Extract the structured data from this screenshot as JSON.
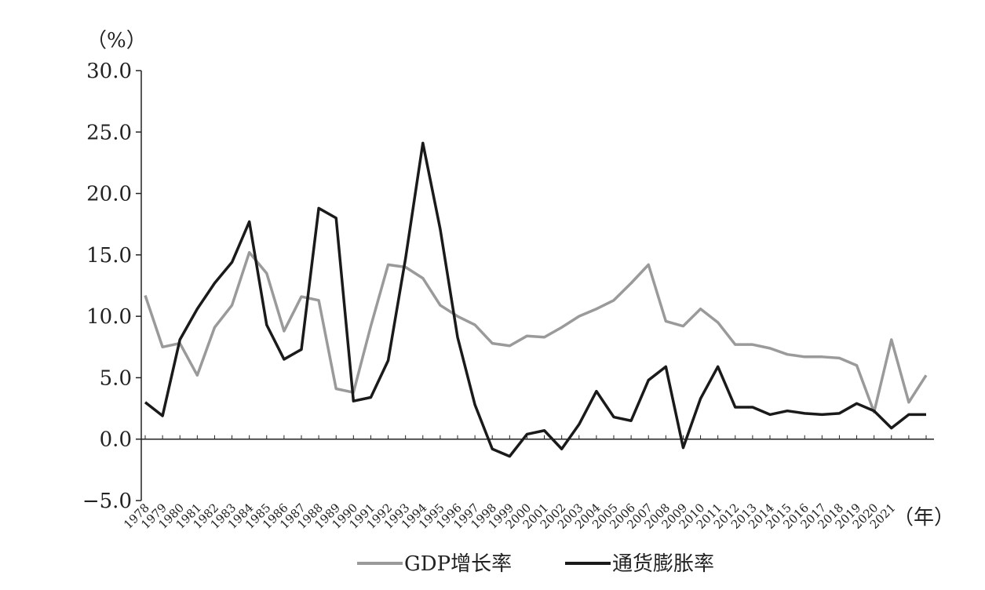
{
  "chart_data": {
    "type": "line",
    "y_axis_label": "（%）",
    "x_axis_label": "（年）",
    "categories": [
      "1978",
      "1979",
      "1980",
      "1981",
      "1982",
      "1983",
      "1984",
      "1985",
      "1986",
      "1987",
      "1988",
      "1989",
      "1990",
      "1991",
      "1992",
      "1993",
      "1994",
      "1995",
      "1996",
      "1997",
      "1998",
      "1999",
      "2000",
      "2001",
      "2002",
      "2003",
      "2004",
      "2005",
      "2006",
      "2007",
      "2008",
      "2009",
      "2010",
      "2011",
      "2012",
      "2013",
      "2014",
      "2015",
      "2016",
      "2017",
      "2018",
      "2019",
      "2020",
      "2021",
      null,
      null
    ],
    "series": [
      {
        "name": "GDP增长率",
        "color": "#9a9a9a",
        "values": [
          11.7,
          7.5,
          7.8,
          5.2,
          9.1,
          10.9,
          15.2,
          13.5,
          8.8,
          11.6,
          11.3,
          4.1,
          3.8,
          9.2,
          14.2,
          14.0,
          13.1,
          10.9,
          10.0,
          9.3,
          7.8,
          7.6,
          8.4,
          8.3,
          9.1,
          10.0,
          10.6,
          11.3,
          12.7,
          14.2,
          9.6,
          9.2,
          10.6,
          9.5,
          7.7,
          7.7,
          7.4,
          6.9,
          6.7,
          6.7,
          6.6,
          6.0,
          2.2,
          8.1,
          3.0,
          5.2
        ]
      },
      {
        "name": "通货膨胀率",
        "color": "#1a1a1a",
        "values": [
          3.0,
          1.9,
          8.1,
          10.6,
          12.7,
          14.4,
          17.7,
          9.3,
          6.5,
          7.3,
          18.8,
          18.0,
          3.1,
          3.4,
          6.4,
          14.7,
          24.1,
          17.1,
          8.3,
          2.8,
          -0.8,
          -1.4,
          0.4,
          0.7,
          -0.8,
          1.2,
          3.9,
          1.8,
          1.5,
          4.8,
          5.9,
          -0.7,
          3.3,
          5.9,
          2.6,
          2.6,
          2.0,
          2.3,
          2.1,
          2.0,
          2.1,
          2.9,
          2.3,
          0.9,
          2.0,
          2.0
        ]
      }
    ],
    "ylim": [
      -5,
      30
    ],
    "yticks": [
      {
        "value": -5,
        "label": "−5.0"
      },
      {
        "value": 0,
        "label": "0.0"
      },
      {
        "value": 5,
        "label": "5.0"
      },
      {
        "value": 10,
        "label": "10.0"
      },
      {
        "value": 15,
        "label": "15.0"
      },
      {
        "value": 20,
        "label": "20.0"
      },
      {
        "value": 25,
        "label": "25.0"
      },
      {
        "value": 30,
        "label": "30.0"
      }
    ],
    "legend": "bottom"
  }
}
